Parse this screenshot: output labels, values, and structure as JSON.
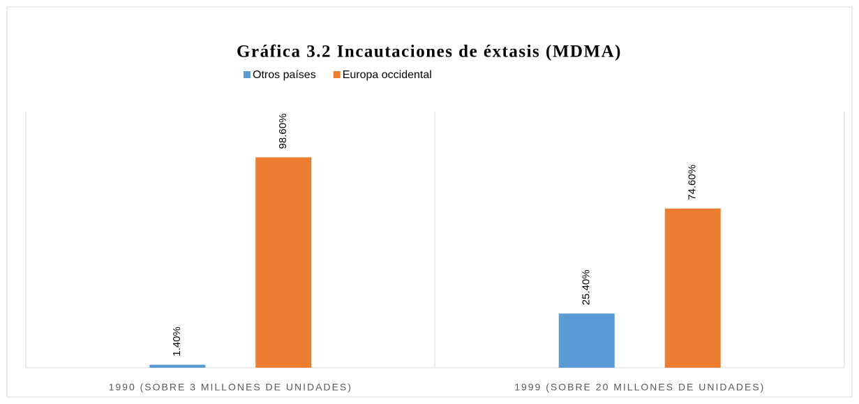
{
  "chart_data": {
    "type": "bar",
    "title": "Gráfica 3.2 Incautaciones de éxtasis (MDMA)",
    "categories": [
      "1990 (SOBRE 3 MILLONES DE UNIDADES)",
      "1999 (SOBRE 20 MILLONES DE UNIDADES)"
    ],
    "series": [
      {
        "name": "Otros países",
        "color": "#5b9bd5",
        "values": [
          1.4,
          25.4
        ],
        "value_labels": [
          "1.40%",
          "25.40%"
        ]
      },
      {
        "name": "Europa occidental",
        "color": "#ed7d31",
        "values": [
          98.6,
          74.6
        ],
        "value_labels": [
          "98.60%",
          "74.60%"
        ]
      }
    ],
    "ylim": [
      0,
      120
    ],
    "legend": "top"
  }
}
